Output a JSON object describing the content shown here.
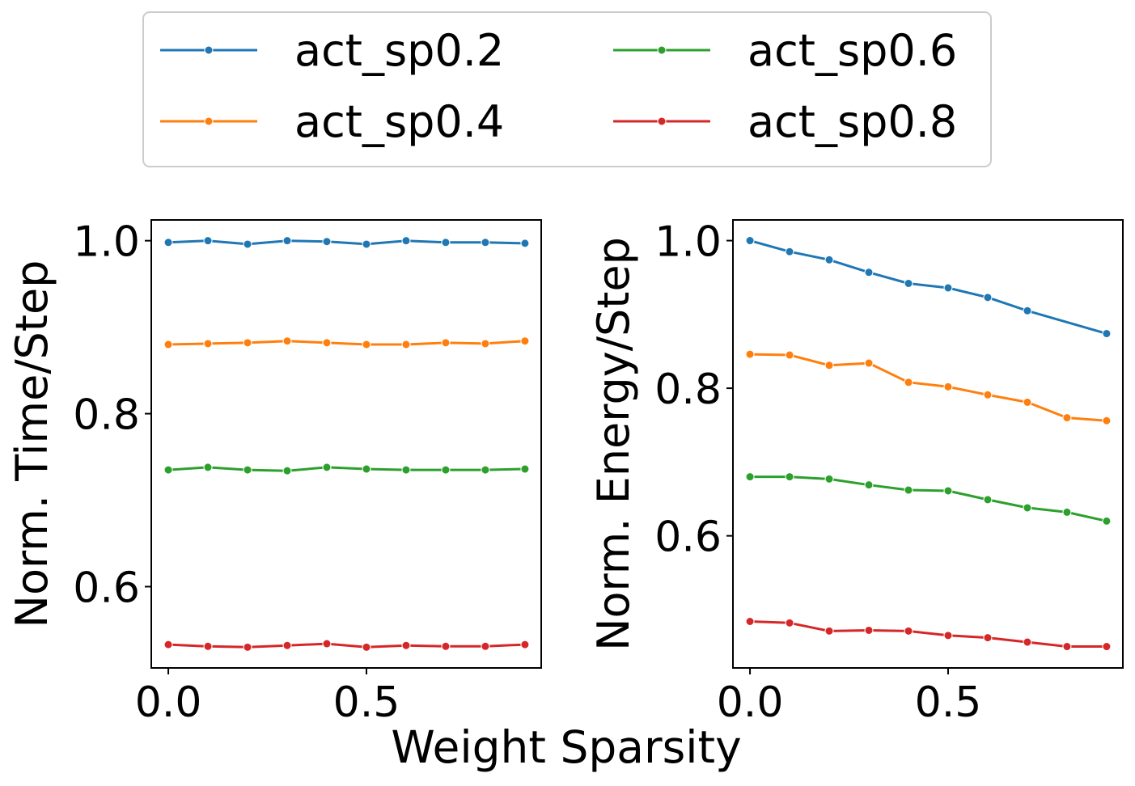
{
  "chart_data": [
    {
      "type": "line",
      "xlabel": "Weight Sparsity",
      "ylabel": "Norm. Time/Step",
      "x": [
        0.0,
        0.1,
        0.2,
        0.3,
        0.4,
        0.5,
        0.6,
        0.7,
        0.8,
        0.9
      ],
      "xlim": [
        -0.043,
        0.941
      ],
      "ylim": [
        0.506,
        1.024
      ],
      "xticks": [
        0.0,
        0.5
      ],
      "xtick_labels": [
        "0.0",
        "0.5"
      ],
      "yticks": [
        0.6,
        0.8,
        1.0
      ],
      "ytick_labels": [
        "0.6",
        "0.8",
        "1.0"
      ],
      "grid": false,
      "series": [
        {
          "name": "act_sp0.2",
          "color": "#1f77b4",
          "values": [
            0.998,
            1.0,
            0.996,
            1.0,
            0.999,
            0.996,
            1.0,
            0.998,
            0.998,
            0.997
          ]
        },
        {
          "name": "act_sp0.4",
          "color": "#ff7f0e",
          "values": [
            0.88,
            0.881,
            0.882,
            0.884,
            0.882,
            0.88,
            0.88,
            0.882,
            0.881,
            0.884
          ]
        },
        {
          "name": "act_sp0.6",
          "color": "#2ca02c",
          "values": [
            0.735,
            0.738,
            0.735,
            0.734,
            0.738,
            0.736,
            0.735,
            0.735,
            0.735,
            0.736
          ]
        },
        {
          "name": "act_sp0.8",
          "color": "#d62728",
          "values": [
            0.533,
            0.531,
            0.53,
            0.532,
            0.534,
            0.53,
            0.532,
            0.531,
            0.531,
            0.533
          ]
        }
      ]
    },
    {
      "type": "line",
      "ylabel": "Norm. Energy/Step",
      "x": [
        0.0,
        0.1,
        0.2,
        0.3,
        0.4,
        0.5,
        0.6,
        0.7,
        0.8,
        0.9
      ],
      "xlim": [
        -0.043,
        0.941
      ],
      "ylim": [
        0.421,
        1.028
      ],
      "xticks": [
        0.0,
        0.5
      ],
      "xtick_labels": [
        "0.0",
        "0.5"
      ],
      "yticks": [
        0.6,
        0.8,
        1.0
      ],
      "ytick_labels": [
        "0.6",
        "0.8",
        "1.0"
      ],
      "grid": false,
      "series": [
        {
          "name": "act_sp0.2",
          "color": "#1f77b4",
          "values": [
            1.0,
            0.985,
            0.974,
            0.957,
            0.942,
            0.936,
            0.923,
            0.905,
            null,
            0.874
          ]
        },
        {
          "name": "act_sp0.4",
          "color": "#ff7f0e",
          "values": [
            0.846,
            0.845,
            0.831,
            0.834,
            0.808,
            0.802,
            0.791,
            0.781,
            0.76,
            0.756
          ]
        },
        {
          "name": "act_sp0.6",
          "color": "#2ca02c",
          "values": [
            0.68,
            0.68,
            0.677,
            0.669,
            0.662,
            0.661,
            0.649,
            0.638,
            0.632,
            0.62
          ]
        },
        {
          "name": "act_sp0.8",
          "color": "#d62728",
          "values": [
            0.484,
            0.482,
            0.471,
            0.472,
            0.471,
            0.465,
            0.462,
            0.456,
            0.45,
            0.45
          ]
        }
      ]
    }
  ],
  "shared_xlabel": "Weight Sparsity",
  "legend": {
    "placement": "top-center",
    "columns": 2,
    "entries": [
      {
        "label": "act_sp0.2",
        "color": "#1f77b4"
      },
      {
        "label": "act_sp0.4",
        "color": "#ff7f0e"
      },
      {
        "label": "act_sp0.6",
        "color": "#2ca02c"
      },
      {
        "label": "act_sp0.8",
        "color": "#d62728"
      }
    ]
  }
}
